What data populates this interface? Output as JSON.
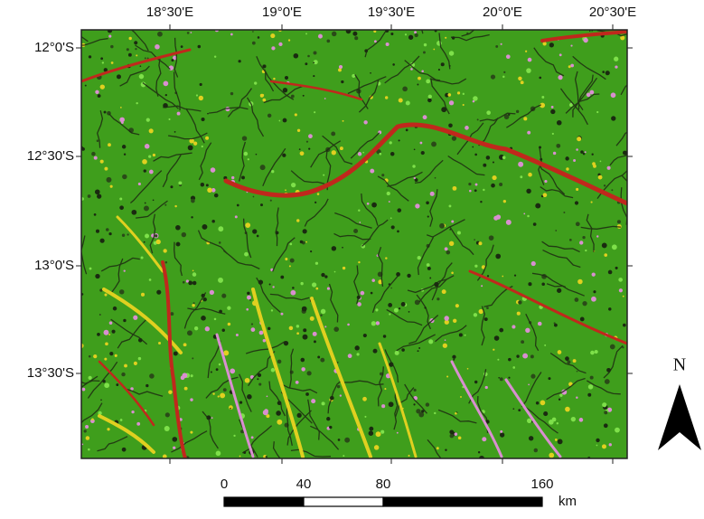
{
  "graticule": {
    "longitudes": [
      "18°30'E",
      "19°0'E",
      "19°30'E",
      "20°0'E",
      "20°30'E"
    ],
    "latitudes": [
      "12°0'S",
      "12°30'S",
      "13°0'S",
      "13°30'S"
    ]
  },
  "scale_bar": {
    "labels": [
      0,
      40,
      80,
      160
    ],
    "unit": "km"
  },
  "north_arrow": {
    "label": "N"
  }
}
